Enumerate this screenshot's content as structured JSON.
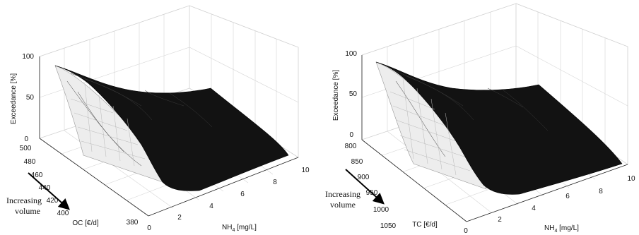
{
  "chart_data": [
    {
      "type": "surface",
      "zlabel": "Exceedance [%]",
      "xlabel_main": "NH",
      "xlabel_sub": "4",
      "xlabel_unit": " [mg/L]",
      "ylabel": "OC [€/d]",
      "x_ticks": [
        "0",
        "2",
        "4",
        "6",
        "8",
        "10"
      ],
      "y_ticks": [
        "500",
        "480",
        "460",
        "440",
        "420",
        "400",
        "380"
      ],
      "z_ticks": [
        "0",
        "50",
        "100"
      ],
      "xlim": [
        0,
        10
      ],
      "ylim": [
        500,
        380
      ],
      "zlim": [
        0,
        100
      ],
      "annotation": [
        "Increasing",
        "volume"
      ],
      "surface_points": [
        {
          "x": 0.5,
          "y": 500,
          "z": 88
        },
        {
          "x": 2.0,
          "y": 500,
          "z": 70
        },
        {
          "x": 4.0,
          "y": 500,
          "z": 60
        },
        {
          "x": 10.0,
          "y": 500,
          "z": 55
        },
        {
          "x": 0.5,
          "y": 440,
          "z": 30
        },
        {
          "x": 2.0,
          "y": 400,
          "z": 5
        },
        {
          "x": 10.0,
          "y": 380,
          "z": 0
        }
      ]
    },
    {
      "type": "surface",
      "zlabel": "Exceedance [%]",
      "xlabel_main": "NH",
      "xlabel_sub": "4",
      "xlabel_unit": " [mg/L]",
      "ylabel": "TC [€/d]",
      "x_ticks": [
        "0",
        "2",
        "4",
        "6",
        "8",
        "10"
      ],
      "y_ticks": [
        "800",
        "850",
        "900",
        "950",
        "1000",
        "1050"
      ],
      "z_ticks": [
        "0",
        "50",
        "100"
      ],
      "xlim": [
        0,
        10
      ],
      "ylim": [
        800,
        1050
      ],
      "zlim": [
        0,
        100
      ],
      "annotation": [
        "Increasing",
        "volume"
      ],
      "surface_points": [
        {
          "x": 0.5,
          "y": 800,
          "z": 92
        },
        {
          "x": 2.0,
          "y": 800,
          "z": 72
        },
        {
          "x": 4.0,
          "y": 800,
          "z": 62
        },
        {
          "x": 10.0,
          "y": 800,
          "z": 58
        },
        {
          "x": 0.5,
          "y": 900,
          "z": 35
        },
        {
          "x": 2.0,
          "y": 1000,
          "z": 5
        },
        {
          "x": 10.0,
          "y": 1050,
          "z": 0
        }
      ]
    }
  ],
  "colors": {
    "surface": "#121212",
    "mesh": "#e0e0e0",
    "grid": "#d6d6d6",
    "text": "#111111"
  }
}
